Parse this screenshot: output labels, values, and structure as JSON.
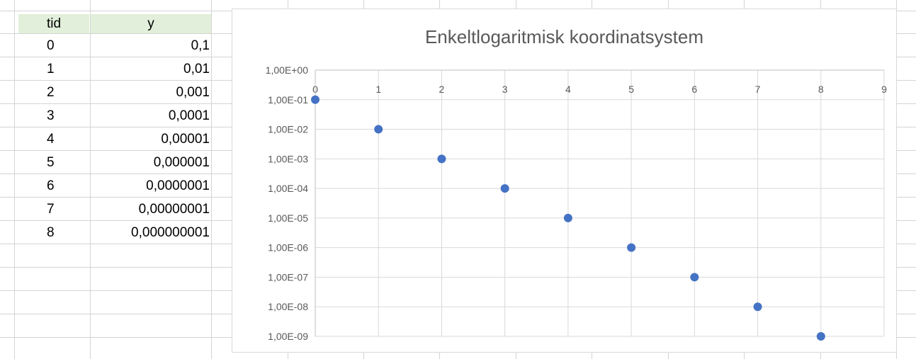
{
  "table": {
    "headers": {
      "tid": "tid",
      "y": "y"
    },
    "rows": [
      {
        "tid": "0",
        "y": "0,1"
      },
      {
        "tid": "1",
        "y": "0,01"
      },
      {
        "tid": "2",
        "y": "0,001"
      },
      {
        "tid": "3",
        "y": "0,0001"
      },
      {
        "tid": "4",
        "y": "0,00001"
      },
      {
        "tid": "5",
        "y": "0,000001"
      },
      {
        "tid": "6",
        "y": "0,0000001"
      },
      {
        "tid": "7",
        "y": "0,00000001"
      },
      {
        "tid": "8",
        "y": "0,000000001"
      }
    ],
    "header_color": "#e2efda"
  },
  "chart_data": {
    "type": "scatter",
    "title": "Enkeltlogaritmisk koordinatsystem",
    "xlabel": "",
    "ylabel": "",
    "x_scale": "linear",
    "y_scale": "log",
    "xlim": [
      0,
      9
    ],
    "ylim": [
      1e-09,
      1
    ],
    "x_ticks": [
      "0",
      "1",
      "2",
      "3",
      "4",
      "5",
      "6",
      "7",
      "8",
      "9"
    ],
    "y_ticks": [
      "1,00E+00",
      "1,00E-01",
      "1,00E-02",
      "1,00E-03",
      "1,00E-04",
      "1,00E-05",
      "1,00E-06",
      "1,00E-07",
      "1,00E-08",
      "1,00E-09"
    ],
    "x": [
      0,
      1,
      2,
      3,
      4,
      5,
      6,
      7,
      8
    ],
    "y": [
      0.1,
      0.01,
      0.001,
      0.0001,
      1e-05,
      1e-06,
      1e-07,
      1e-08,
      1e-09
    ],
    "x_axis_position": "top",
    "grid": true,
    "marker_color": "#4472c4",
    "gridline_color": "#d9d9d9"
  }
}
